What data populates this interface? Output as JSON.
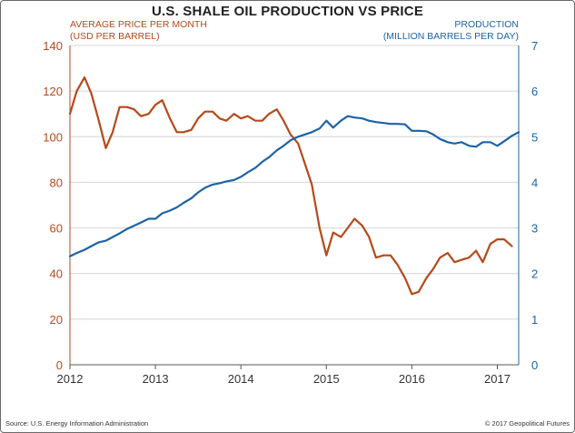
{
  "chart_data": {
    "type": "line",
    "title": "U.S. SHALE OIL PRODUCTION VS PRICE",
    "y_left": {
      "label_line1": "AVERAGE PRICE PER MONTH",
      "label_line2": "(USD PER BARREL)",
      "range": [
        0,
        140
      ],
      "ticks": [
        "0",
        "20",
        "40",
        "60",
        "80",
        "100",
        "120",
        "140"
      ],
      "color": "#b5491b"
    },
    "y_right": {
      "label_line1": "PRODUCTION",
      "label_line2": "(MILLION BARRELS PER DAY)",
      "range": [
        0,
        7
      ],
      "ticks": [
        "0",
        "1",
        "2",
        "3",
        "4",
        "5",
        "6",
        "7"
      ],
      "color": "#1d63a6"
    },
    "x_axis": {
      "range": [
        2012.0,
        2017.25
      ],
      "ticks": [
        {
          "label": "2012",
          "value": 2012.0
        },
        {
          "label": "2013",
          "value": 2013.0
        },
        {
          "label": "2014",
          "value": 2014.0
        },
        {
          "label": "2015",
          "value": 2015.0
        },
        {
          "label": "2016",
          "value": 2016.0
        },
        {
          "label": "2017",
          "value": 2017.0
        }
      ]
    },
    "grid": "horizontal",
    "series": [
      {
        "axis": "left",
        "color": "#b5491b",
        "points": [
          [
            2012.0,
            110
          ],
          [
            2012.08,
            120
          ],
          [
            2012.17,
            126
          ],
          [
            2012.25,
            119
          ],
          [
            2012.33,
            108
          ],
          [
            2012.42,
            95
          ],
          [
            2012.5,
            102
          ],
          [
            2012.58,
            113
          ],
          [
            2012.67,
            113
          ],
          [
            2012.75,
            112
          ],
          [
            2012.83,
            109
          ],
          [
            2012.92,
            110
          ],
          [
            2013.0,
            114
          ],
          [
            2013.08,
            116
          ],
          [
            2013.17,
            108
          ],
          [
            2013.25,
            102
          ],
          [
            2013.33,
            102
          ],
          [
            2013.42,
            103
          ],
          [
            2013.5,
            108
          ],
          [
            2013.58,
            111
          ],
          [
            2013.67,
            111
          ],
          [
            2013.75,
            108
          ],
          [
            2013.83,
            107
          ],
          [
            2013.92,
            110
          ],
          [
            2014.0,
            108
          ],
          [
            2014.08,
            109
          ],
          [
            2014.17,
            107
          ],
          [
            2014.25,
            107
          ],
          [
            2014.33,
            110
          ],
          [
            2014.42,
            112
          ],
          [
            2014.5,
            107
          ],
          [
            2014.58,
            101
          ],
          [
            2014.67,
            97
          ],
          [
            2014.75,
            88
          ],
          [
            2014.83,
            79
          ],
          [
            2014.92,
            60
          ],
          [
            2015.0,
            48
          ],
          [
            2015.08,
            58
          ],
          [
            2015.17,
            56
          ],
          [
            2015.25,
            60
          ],
          [
            2015.33,
            64
          ],
          [
            2015.42,
            61
          ],
          [
            2015.5,
            56
          ],
          [
            2015.58,
            47
          ],
          [
            2015.67,
            48
          ],
          [
            2015.75,
            48
          ],
          [
            2015.83,
            44
          ],
          [
            2015.92,
            38
          ],
          [
            2016.0,
            31
          ],
          [
            2016.08,
            32
          ],
          [
            2016.17,
            38
          ],
          [
            2016.25,
            42
          ],
          [
            2016.33,
            47
          ],
          [
            2016.42,
            49
          ],
          [
            2016.5,
            45
          ],
          [
            2016.58,
            46
          ],
          [
            2016.67,
            47
          ],
          [
            2016.75,
            50
          ],
          [
            2016.83,
            45
          ],
          [
            2016.92,
            53
          ],
          [
            2017.0,
            55
          ],
          [
            2017.08,
            55
          ],
          [
            2017.17,
            52
          ]
        ]
      },
      {
        "axis": "right",
        "color": "#1d63a6",
        "points": [
          [
            2012.0,
            2.38
          ],
          [
            2012.08,
            2.45
          ],
          [
            2012.17,
            2.52
          ],
          [
            2012.25,
            2.6
          ],
          [
            2012.33,
            2.68
          ],
          [
            2012.42,
            2.72
          ],
          [
            2012.5,
            2.8
          ],
          [
            2012.58,
            2.88
          ],
          [
            2012.67,
            2.98
          ],
          [
            2012.75,
            3.05
          ],
          [
            2012.83,
            3.12
          ],
          [
            2012.92,
            3.2
          ],
          [
            2013.0,
            3.2
          ],
          [
            2013.08,
            3.32
          ],
          [
            2013.17,
            3.38
          ],
          [
            2013.25,
            3.45
          ],
          [
            2013.33,
            3.55
          ],
          [
            2013.42,
            3.65
          ],
          [
            2013.5,
            3.78
          ],
          [
            2013.58,
            3.88
          ],
          [
            2013.67,
            3.95
          ],
          [
            2013.75,
            3.98
          ],
          [
            2013.83,
            4.02
          ],
          [
            2013.92,
            4.05
          ],
          [
            2014.0,
            4.12
          ],
          [
            2014.08,
            4.22
          ],
          [
            2014.17,
            4.32
          ],
          [
            2014.25,
            4.45
          ],
          [
            2014.33,
            4.55
          ],
          [
            2014.42,
            4.7
          ],
          [
            2014.5,
            4.8
          ],
          [
            2014.58,
            4.92
          ],
          [
            2014.67,
            5.0
          ],
          [
            2014.75,
            5.05
          ],
          [
            2014.83,
            5.1
          ],
          [
            2014.92,
            5.18
          ],
          [
            2015.0,
            5.35
          ],
          [
            2015.08,
            5.2
          ],
          [
            2015.17,
            5.35
          ],
          [
            2015.25,
            5.45
          ],
          [
            2015.33,
            5.42
          ],
          [
            2015.42,
            5.4
          ],
          [
            2015.5,
            5.35
          ],
          [
            2015.58,
            5.32
          ],
          [
            2015.67,
            5.3
          ],
          [
            2015.75,
            5.28
          ],
          [
            2015.83,
            5.28
          ],
          [
            2015.92,
            5.27
          ],
          [
            2016.0,
            5.13
          ],
          [
            2016.08,
            5.13
          ],
          [
            2016.17,
            5.12
          ],
          [
            2016.25,
            5.05
          ],
          [
            2016.33,
            4.95
          ],
          [
            2016.42,
            4.88
          ],
          [
            2016.5,
            4.85
          ],
          [
            2016.58,
            4.88
          ],
          [
            2016.67,
            4.8
          ],
          [
            2016.75,
            4.78
          ],
          [
            2016.83,
            4.88
          ],
          [
            2016.92,
            4.88
          ],
          [
            2017.0,
            4.8
          ],
          [
            2017.08,
            4.9
          ],
          [
            2017.17,
            5.02
          ],
          [
            2017.25,
            5.1
          ]
        ]
      }
    ]
  },
  "footer": {
    "source": "Source: U.S. Energy Information Administration",
    "copyright": "© 2017 Geopolitical Futures"
  }
}
